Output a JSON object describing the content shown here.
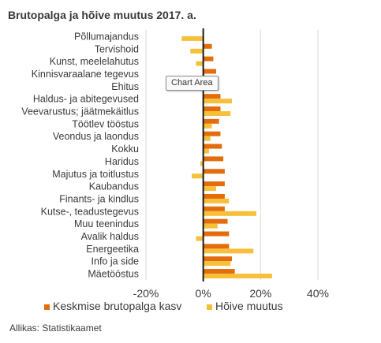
{
  "chart_data": {
    "type": "bar",
    "orientation": "horizontal",
    "title": "Brutopalga ja hõive muutus 2017. a.",
    "categories": [
      "Põllumajandus",
      "Tervishoid",
      "Kunst, meelelahutus",
      "Kinnisvaraalane tegevus",
      "Ehitus",
      "Haldus- ja abitegevused",
      "Veevarustus; jäätmekäitlus",
      "Töötlev tööstus",
      "Veondus ja laondus",
      "Kokku",
      "Haridus",
      "Majutus ja toitlustus",
      "Kaubandus",
      "Finants- ja kindlus",
      "Kutse-, teadustegevus",
      "Muu teenindus",
      "Avalik haldus",
      "Energeetika",
      "Info ja side",
      "Mäetööstus"
    ],
    "series": [
      {
        "name": "Keskmise brutopalga kasv",
        "color": "#e46c0a",
        "values": [
          0.0,
          3.0,
          3.5,
          4.5,
          5.0,
          6.0,
          6.0,
          5.5,
          6.0,
          6.5,
          7.0,
          7.5,
          7.5,
          7.5,
          7.5,
          8.5,
          9.0,
          9.0,
          10.0,
          11.0
        ]
      },
      {
        "name": "Hõive muutus",
        "color": "#f7c03a",
        "values": [
          -7.5,
          -4.5,
          -2.5,
          0.5,
          -1.0,
          10.0,
          9.5,
          3.0,
          2.5,
          2.0,
          -1.0,
          -4.0,
          4.5,
          9.0,
          18.5,
          5.0,
          -2.5,
          17.5,
          9.5,
          24.0
        ]
      }
    ],
    "x_ticks": [
      -20,
      0,
      20,
      40
    ],
    "tick_suffix": "%",
    "xlim": [
      -20,
      40
    ],
    "grid": true,
    "legend_position": "bottom"
  },
  "source": "Allikas: Statistikaamet",
  "tooltip_text": "Chart Area"
}
